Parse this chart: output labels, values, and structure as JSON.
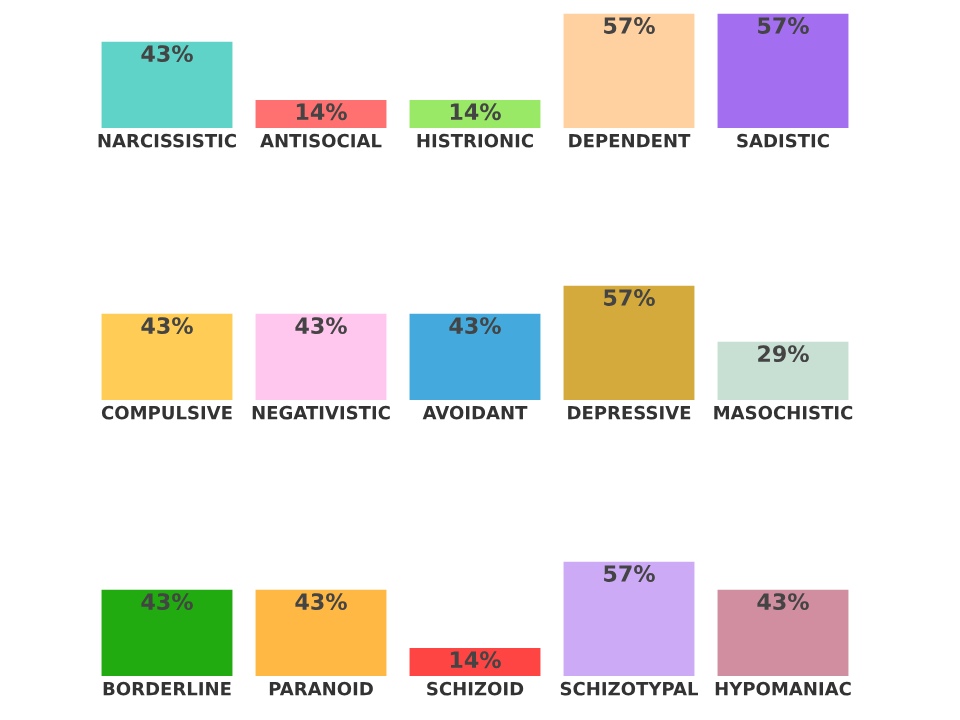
{
  "chart_data": [
    {
      "type": "bar",
      "categories": [
        "NARCISSISTIC",
        "ANTISOCIAL",
        "HISTRIONIC",
        "DEPENDENT",
        "SADISTIC"
      ],
      "values": [
        43,
        14,
        14,
        57,
        57
      ],
      "value_labels": [
        "43%",
        "14%",
        "14%",
        "57%",
        "57%"
      ],
      "colors": [
        "#5fd3c8",
        "#ff7070",
        "#99e866",
        "#ffd0a0",
        "#a46ef0"
      ],
      "tick_labels": "x"
    },
    {
      "type": "bar",
      "categories": [
        "COMPULSIVE",
        "NEGATIVISTIC",
        "AVOIDANT",
        "DEPRESSIVE",
        "MASOCHISTIC"
      ],
      "values": [
        43,
        43,
        43,
        57,
        29
      ],
      "value_labels": [
        "43%",
        "43%",
        "43%",
        "57%",
        "29%"
      ],
      "colors": [
        "#ffcc55",
        "#ffc6ee",
        "#44aadd",
        "#d4aa3c",
        "#c8e0d4"
      ],
      "tick_labels": "x"
    },
    {
      "type": "bar",
      "categories": [
        "BORDERLINE",
        "PARANOID",
        "SCHIZOID",
        "SCHIZOTYPAL",
        "HYPOMANIAC"
      ],
      "values": [
        43,
        43,
        14,
        57,
        43
      ],
      "value_labels": [
        "43%",
        "43%",
        "14%",
        "57%",
        "43%"
      ],
      "colors": [
        "#22aa11",
        "#ffb844",
        "#ff4444",
        "#ccaaf5",
        "#d08ea0"
      ],
      "tick_labels": "x"
    }
  ]
}
